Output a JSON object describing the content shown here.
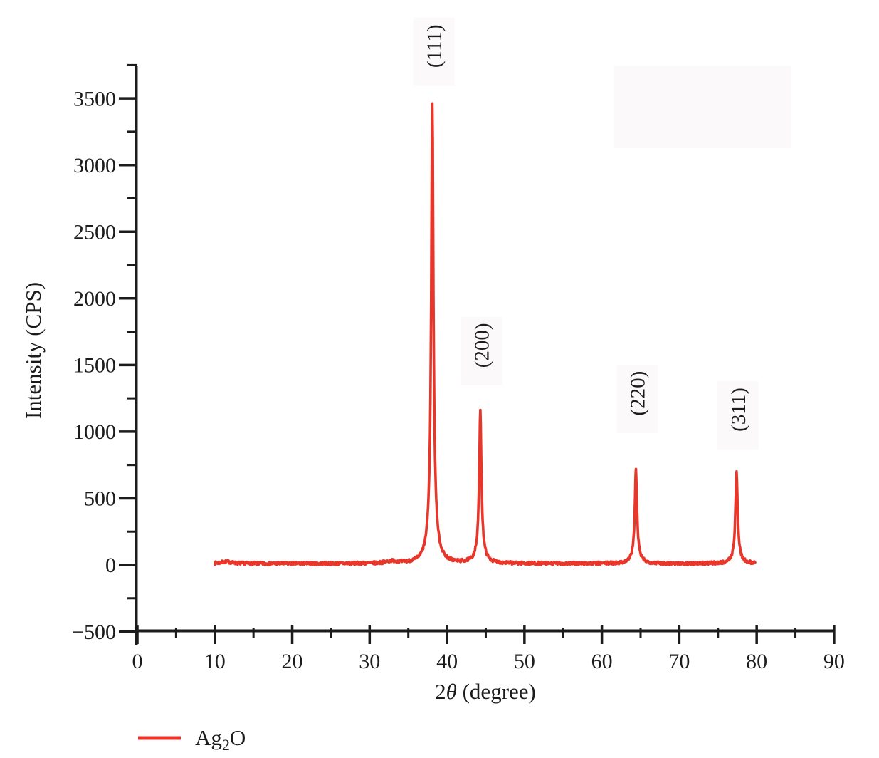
{
  "figure": {
    "background_color": "#ffffff",
    "series_color": "#e8362b",
    "axis_color": "#1c1c1c",
    "faint_box_color": "#fbf9f9"
  },
  "chart_data": {
    "type": "line",
    "title": "",
    "xlabel": "2θ (degree)",
    "ylabel": "Intensity (CPS)",
    "xlim": [
      0,
      90
    ],
    "ylim": [
      -500,
      3750
    ],
    "grid": false,
    "x_major_ticks": [
      0,
      10,
      20,
      30,
      40,
      50,
      60,
      70,
      80,
      90
    ],
    "x_minor_ticks": [
      5,
      15,
      25,
      35,
      45,
      55,
      65,
      75,
      85
    ],
    "y_major_ticks": [
      -500,
      0,
      500,
      1000,
      1500,
      2000,
      2500,
      3000,
      3500
    ],
    "y_minor_ticks": [
      -250,
      250,
      750,
      1250,
      1750,
      2250,
      2750,
      3250,
      3750
    ],
    "legend": {
      "position": "bottom-left",
      "entries": [
        {
          "label": "Ag₂O",
          "marker": "line",
          "color": "#e8362b"
        }
      ]
    },
    "series": [
      {
        "name": "Ag₂O",
        "color": "#e8362b",
        "x_range": [
          10,
          79.8
        ],
        "baseline_cps": 10,
        "noise_amplitude_cps": 12,
        "peaks": [
          {
            "label": "(111)",
            "two_theta": 38.1,
            "intensity": 3460
          },
          {
            "label": "(200)",
            "two_theta": 44.3,
            "intensity": 1140
          },
          {
            "label": "(220)",
            "two_theta": 64.4,
            "intensity": 700
          },
          {
            "label": "(311)",
            "two_theta": 77.4,
            "intensity": 690
          }
        ],
        "minor_bumps": [
          {
            "two_theta": 11.5,
            "intensity": 14
          },
          {
            "two_theta": 32.9,
            "intensity": 16
          }
        ]
      }
    ],
    "annotations": [
      {
        "text": "(111)",
        "at_two_theta": 38.1,
        "rotation_deg": -90
      },
      {
        "text": "(200)",
        "at_two_theta": 44.3,
        "rotation_deg": -90
      },
      {
        "text": "(220)",
        "at_two_theta": 64.4,
        "rotation_deg": -90
      },
      {
        "text": "(311)",
        "at_two_theta": 77.4,
        "rotation_deg": -90
      }
    ]
  }
}
